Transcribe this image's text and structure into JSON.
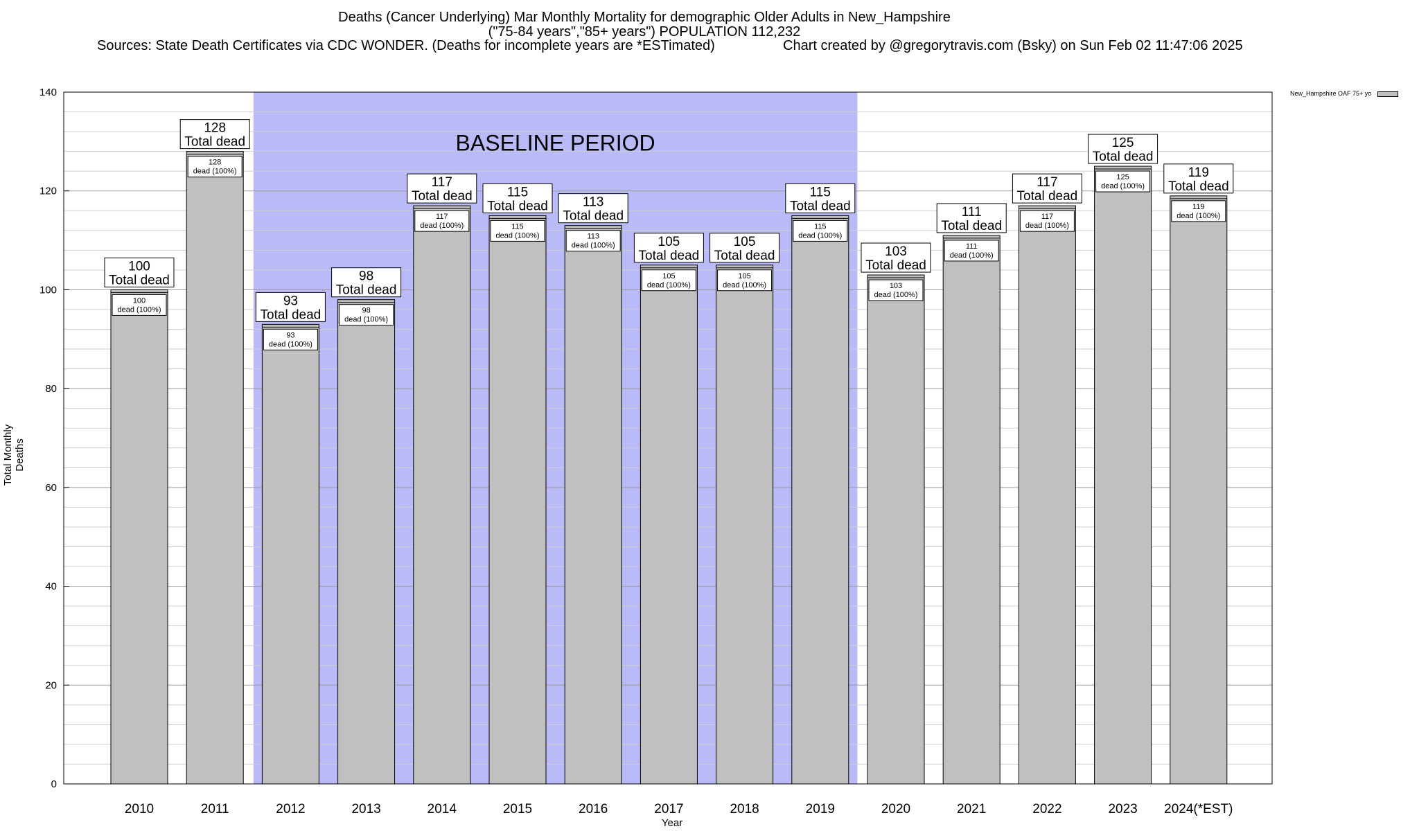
{
  "header": {
    "title_line1": "Deaths (Cancer Underlying) Mar Monthly Mortality for demographic Older Adults in New_Hampshire",
    "title_line2": "(\"75-84 years\",\"85+ years\") POPULATION 112,232",
    "sources": "Sources: State Death Certificates via CDC WONDER. (Deaths for incomplete years are *ESTimated)",
    "credit": "Chart created by @gregorytravis.com (Bsky) on Sun Feb 02 11:47:06 2025"
  },
  "chart_data": {
    "type": "bar",
    "categories": [
      "2010",
      "2011",
      "2012",
      "2013",
      "2014",
      "2015",
      "2016",
      "2017",
      "2018",
      "2019",
      "2020",
      "2021",
      "2022",
      "2023",
      "2024(*EST)"
    ],
    "series": [
      {
        "name": "New_Hampshire OAF 75+ yo",
        "values": [
          100,
          128,
          93,
          98,
          117,
          115,
          113,
          105,
          105,
          115,
          103,
          111,
          117,
          125,
          119
        ]
      }
    ],
    "total_label": "Total dead",
    "inner_label": "dead (100%)",
    "xlabel": "Year",
    "ylabel": "Total Monthly Deaths",
    "ylim": [
      0,
      140
    ],
    "yticks": [
      0,
      20,
      40,
      60,
      80,
      100,
      120,
      140
    ],
    "baseline": {
      "label": "BASELINE PERIOD",
      "from": "2012",
      "to": "2019",
      "color": "#babaf8"
    },
    "bar_color": "#c0c0c0",
    "grid": true,
    "legend_position": "top-right"
  }
}
